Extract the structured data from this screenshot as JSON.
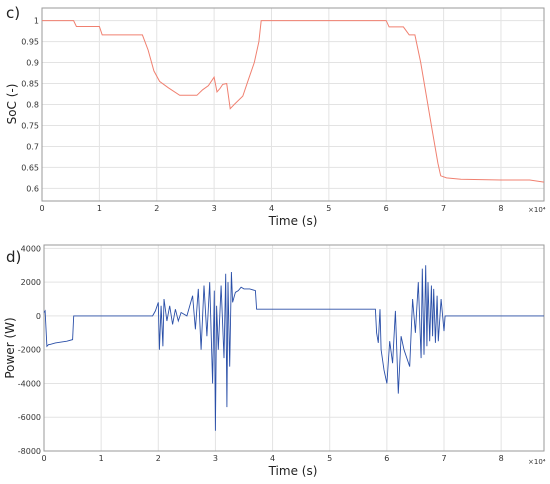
{
  "chart_data": [
    {
      "panel_label": "c)",
      "type": "line",
      "xlabel": "Time (s)",
      "ylabel": "SoC (-)",
      "x_multiplier": "×10⁴",
      "xlim": [
        0,
        8.75
      ],
      "ylim": [
        0.57,
        1.03
      ],
      "x_ticks": [
        0,
        1,
        2,
        3,
        4,
        5,
        6,
        7,
        8
      ],
      "y_ticks": [
        0.6,
        0.65,
        0.7,
        0.75,
        0.8,
        0.85,
        0.9,
        0.95,
        1
      ],
      "y_tick_labels": [
        "0.6",
        "0.65",
        "0.7",
        "0.75",
        "0.8",
        "0.85",
        "0.9",
        "0.95",
        "1"
      ],
      "grid": true,
      "color": "#f08070",
      "series": [
        {
          "x": [
            0,
            0.55,
            0.6,
            1.0,
            1.05,
            1.5,
            1.75,
            1.85,
            1.95,
            2.05,
            2.2,
            2.4,
            2.6,
            2.7,
            2.8,
            2.9,
            3.0,
            3.05,
            3.1,
            3.15,
            3.22,
            3.28,
            3.35,
            3.5,
            3.6,
            3.7,
            3.78,
            3.82,
            4.2,
            4.3,
            5.5,
            6.0,
            6.05,
            6.3,
            6.4,
            6.5,
            6.6,
            6.7,
            6.8,
            6.9,
            6.95,
            7.05,
            7.3,
            8.0,
            8.5,
            8.75
          ],
          "y": [
            1.0,
            1.0,
            0.986,
            0.986,
            0.966,
            0.966,
            0.966,
            0.93,
            0.88,
            0.855,
            0.84,
            0.822,
            0.822,
            0.822,
            0.835,
            0.845,
            0.865,
            0.83,
            0.838,
            0.848,
            0.85,
            0.79,
            0.8,
            0.82,
            0.86,
            0.9,
            0.95,
            1.0,
            1.0,
            1.0,
            1.0,
            1.0,
            0.985,
            0.985,
            0.966,
            0.966,
            0.9,
            0.82,
            0.74,
            0.66,
            0.63,
            0.625,
            0.622,
            0.62,
            0.62,
            0.615
          ]
        }
      ]
    },
    {
      "panel_label": "d)",
      "type": "line",
      "xlabel": "Time (s)",
      "ylabel": "Power (W)",
      "x_multiplier": "×10⁴",
      "xlim": [
        0,
        8.75
      ],
      "ylim": [
        -8000,
        4200
      ],
      "x_ticks": [
        0,
        1,
        2,
        3,
        4,
        5,
        6,
        7,
        8
      ],
      "y_ticks": [
        -8000,
        -6000,
        -4000,
        -2000,
        0,
        2000,
        4000
      ],
      "y_tick_labels": [
        "-8000",
        "-6000",
        "-4000",
        "-2000",
        "0",
        "2000",
        "4000"
      ],
      "grid": true,
      "color": "#2a4fa8",
      "series": [
        {
          "x": [
            0,
            0.02,
            0.05,
            0.08,
            0.1,
            0.2,
            0.4,
            0.5,
            0.52,
            0.6,
            1.0,
            1.5,
            1.9,
            1.95,
            2.0,
            2.02,
            2.05,
            2.08,
            2.1,
            2.15,
            2.2,
            2.25,
            2.3,
            2.35,
            2.4,
            2.5,
            2.6,
            2.65,
            2.7,
            2.75,
            2.8,
            2.85,
            2.9,
            2.95,
            2.98,
            3.0,
            3.02,
            3.05,
            3.1,
            3.15,
            3.18,
            3.2,
            3.22,
            3.25,
            3.28,
            3.3,
            3.35,
            3.4,
            3.45,
            3.5,
            3.6,
            3.7,
            3.72,
            4.0,
            5.0,
            5.8,
            5.82,
            5.85,
            5.88,
            5.9,
            5.95,
            6.0,
            6.05,
            6.1,
            6.15,
            6.2,
            6.25,
            6.3,
            6.4,
            6.45,
            6.5,
            6.55,
            6.6,
            6.62,
            6.65,
            6.68,
            6.7,
            6.72,
            6.75,
            6.78,
            6.8,
            6.82,
            6.85,
            6.88,
            6.9,
            6.95,
            7.0,
            7.02,
            7.5,
            8.0,
            8.75
          ],
          "y": [
            200,
            300,
            -1800,
            -1700,
            -1700,
            -1600,
            -1500,
            -1400,
            0,
            0,
            0,
            0,
            0,
            300,
            800,
            -2000,
            600,
            -1800,
            1000,
            -300,
            600,
            -500,
            400,
            -300,
            200,
            0,
            1200,
            -800,
            1600,
            -2000,
            1800,
            -1200,
            2000,
            -4000,
            1500,
            -6800,
            600,
            -2000,
            1800,
            -2500,
            2500,
            -5400,
            2000,
            -3000,
            2600,
            800,
            1400,
            1500,
            1700,
            1600,
            1600,
            1500,
            400,
            400,
            400,
            400,
            -1000,
            -1600,
            400,
            -2000,
            -3200,
            -4000,
            -1500,
            -2800,
            300,
            -4600,
            -1200,
            -2000,
            -3000,
            1000,
            -1000,
            2000,
            -2500,
            2800,
            -2300,
            3000,
            -1800,
            2000,
            -1500,
            1800,
            -1200,
            1600,
            -1600,
            1200,
            -1500,
            1000,
            -900,
            0,
            0,
            0,
            0
          ]
        }
      ]
    }
  ]
}
